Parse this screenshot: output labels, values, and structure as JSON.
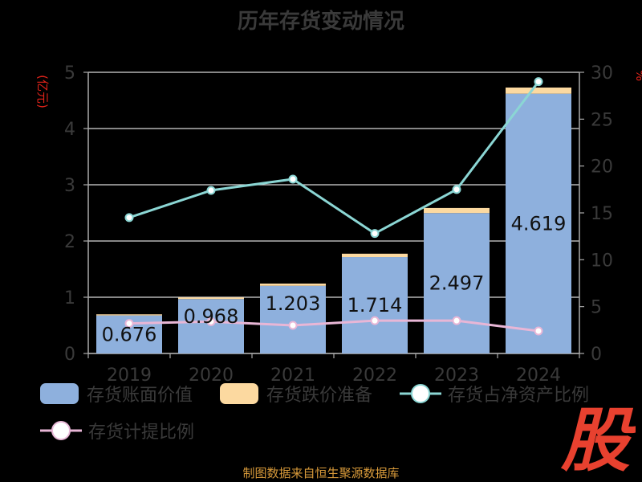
{
  "title": "历年存货变动情况",
  "source": "制图数据来自恒生聚源数据库",
  "watermark": "股",
  "colors": {
    "book_value": "#8eb0dd",
    "impairment": "#fcd9a0",
    "ratio_line": "#8bd6d4",
    "provision_line": "#e8b6d6",
    "axis_unit": "#e2231a",
    "logo": "#e8412f"
  },
  "chart_data": {
    "type": "bar",
    "categories": [
      "2019",
      "2020",
      "2021",
      "2022",
      "2023",
      "2024"
    ],
    "y_left": {
      "unit": "(亿元)",
      "ticks": [
        0,
        1,
        2,
        3,
        4,
        5
      ],
      "lim": [
        0,
        5
      ]
    },
    "y_right": {
      "unit": "%",
      "ticks": [
        0,
        5,
        10,
        15,
        20,
        25,
        30
      ],
      "lim": [
        0,
        30
      ]
    },
    "grid": true,
    "legend_position": "bottom",
    "series": [
      {
        "name": "存货账面价值",
        "type": "bar",
        "axis": "left",
        "values": [
          0.676,
          0.968,
          1.203,
          1.714,
          2.497,
          4.619
        ],
        "labels": [
          "0.676",
          "0.968",
          "1.203",
          "1.714",
          "2.497",
          "4.619"
        ]
      },
      {
        "name": "存货跌价准备",
        "type": "bar-stacked",
        "axis": "left",
        "values": [
          0.02,
          0.03,
          0.04,
          0.06,
          0.09,
          0.11
        ]
      },
      {
        "name": "存货占净资产比例",
        "type": "line",
        "axis": "right",
        "values": [
          14.5,
          17.4,
          18.6,
          12.8,
          17.5,
          29.0
        ]
      },
      {
        "name": "存货计提比例",
        "type": "line",
        "axis": "right",
        "values": [
          3.2,
          3.4,
          3.0,
          3.5,
          3.5,
          2.4
        ]
      }
    ]
  }
}
